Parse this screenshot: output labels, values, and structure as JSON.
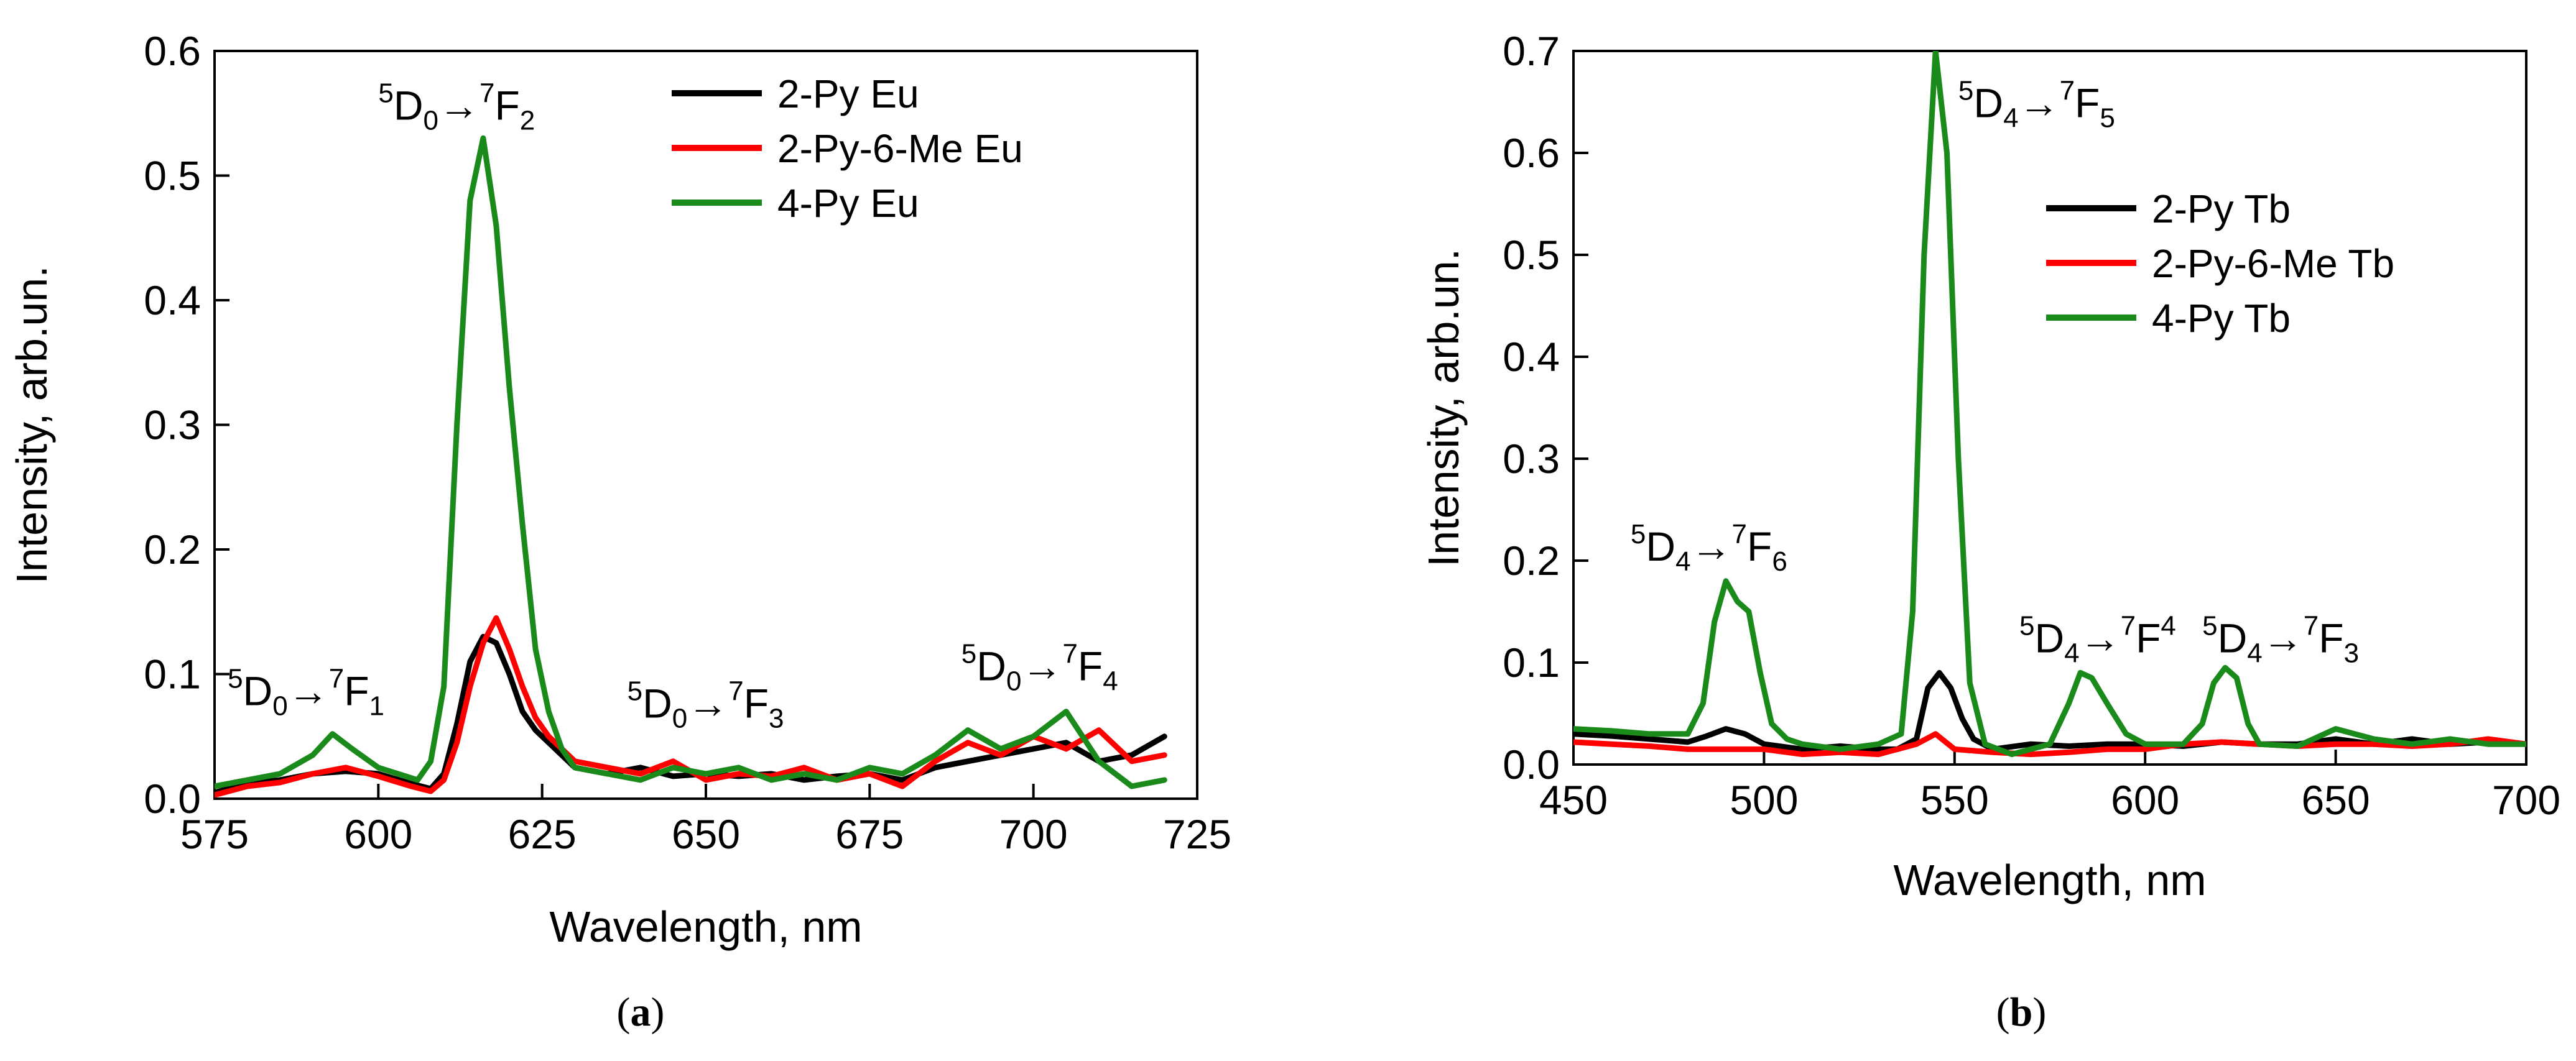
{
  "chart_data": [
    {
      "type": "line",
      "panel": "a",
      "caption": {
        "open": "(",
        "letter": "a",
        "close": ")"
      },
      "xlabel": "Wavelength, nm",
      "ylabel": "Intensity, arb.un.",
      "xlim": [
        575,
        725
      ],
      "ylim": [
        0,
        0.6
      ],
      "xticks": [
        575,
        600,
        625,
        650,
        675,
        700,
        725
      ],
      "xtick_labels": [
        "575",
        "600",
        "625",
        "650",
        "675",
        "700",
        "725"
      ],
      "yticks": [
        0,
        0.1,
        0.2,
        0.3,
        0.4,
        0.5,
        0.6
      ],
      "ytick_labels": [
        "0.0",
        "0.1",
        "0.2",
        "0.3",
        "0.4",
        "0.5",
        "0.6"
      ],
      "legend_position": "top-right",
      "annotations": [
        {
          "text": "5D0→7F2",
          "pre": "5",
          "main": "D",
          "sub": "0",
          "arrow": "→",
          "sup2": "7",
          "main2": "F",
          "end": "2",
          "end_style": "sub",
          "x": 600,
          "y": 0.545
        },
        {
          "text": "5D0→7F1",
          "pre": "5",
          "main": "D",
          "sub": "0",
          "arrow": "→",
          "sup2": "7",
          "main2": "F",
          "end": "1",
          "end_style": "sub",
          "x": 577,
          "y": 0.075
        },
        {
          "text": "5D0→7F3",
          "pre": "5",
          "main": "D",
          "sub": "0",
          "arrow": "→",
          "sup2": "7",
          "main2": "F",
          "end": "3",
          "end_style": "sub",
          "x": 638,
          "y": 0.065
        },
        {
          "text": "5D0→7F4",
          "pre": "5",
          "main": "D",
          "sub": "0",
          "arrow": "→",
          "sup2": "7",
          "main2": "F",
          "end": "4",
          "end_style": "sub",
          "x": 689,
          "y": 0.095
        }
      ],
      "series": [
        {
          "name": "2-Py Eu",
          "color": "#000000",
          "x": [
            575,
            580,
            585,
            590,
            595,
            600,
            605,
            608,
            610,
            612,
            614,
            616,
            618,
            620,
            622,
            624,
            626,
            628,
            630,
            635,
            640,
            645,
            650,
            655,
            660,
            665,
            670,
            675,
            680,
            685,
            690,
            695,
            700,
            705,
            710,
            715,
            720
          ],
          "y": [
            0.005,
            0.012,
            0.015,
            0.02,
            0.022,
            0.02,
            0.012,
            0.008,
            0.02,
            0.06,
            0.11,
            0.13,
            0.125,
            0.1,
            0.07,
            0.055,
            0.045,
            0.035,
            0.025,
            0.02,
            0.025,
            0.018,
            0.02,
            0.018,
            0.02,
            0.015,
            0.018,
            0.02,
            0.015,
            0.025,
            0.03,
            0.035,
            0.04,
            0.045,
            0.03,
            0.035,
            0.05
          ]
        },
        {
          "name": "2-Py-6-Me Eu",
          "color": "#ff0000",
          "x": [
            575,
            580,
            585,
            590,
            595,
            600,
            605,
            608,
            610,
            612,
            614,
            616,
            618,
            620,
            622,
            624,
            626,
            628,
            630,
            635,
            640,
            645,
            650,
            655,
            660,
            665,
            670,
            675,
            680,
            685,
            690,
            695,
            700,
            705,
            710,
            715,
            720
          ],
          "y": [
            0.003,
            0.01,
            0.013,
            0.02,
            0.025,
            0.018,
            0.01,
            0.006,
            0.015,
            0.045,
            0.09,
            0.125,
            0.145,
            0.12,
            0.09,
            0.065,
            0.05,
            0.04,
            0.03,
            0.025,
            0.02,
            0.03,
            0.015,
            0.02,
            0.018,
            0.025,
            0.015,
            0.02,
            0.01,
            0.03,
            0.045,
            0.035,
            0.05,
            0.04,
            0.055,
            0.03,
            0.035
          ]
        },
        {
          "name": "4-Py Eu",
          "color": "#1a8a1a",
          "x": [
            575,
            580,
            585,
            590,
            593,
            596,
            600,
            603,
            606,
            608,
            610,
            612,
            614,
            616,
            618,
            620,
            622,
            624,
            626,
            628,
            630,
            635,
            640,
            645,
            650,
            655,
            660,
            665,
            670,
            675,
            680,
            685,
            690,
            695,
            700,
            705,
            710,
            715,
            720
          ],
          "y": [
            0.01,
            0.015,
            0.02,
            0.035,
            0.052,
            0.04,
            0.025,
            0.02,
            0.015,
            0.03,
            0.09,
            0.3,
            0.48,
            0.53,
            0.46,
            0.33,
            0.22,
            0.12,
            0.07,
            0.04,
            0.025,
            0.02,
            0.015,
            0.025,
            0.02,
            0.025,
            0.015,
            0.02,
            0.015,
            0.025,
            0.02,
            0.035,
            0.055,
            0.04,
            0.05,
            0.07,
            0.03,
            0.01,
            0.015
          ]
        }
      ]
    },
    {
      "type": "line",
      "panel": "b",
      "caption": {
        "open": "(",
        "letter": "b",
        "close": ")"
      },
      "xlabel": "Wavelength, nm",
      "ylabel": "Intensity, arb.un.",
      "xlim": [
        450,
        700
      ],
      "ylim": [
        0,
        0.7
      ],
      "xticks": [
        450,
        500,
        550,
        600,
        650,
        700
      ],
      "xtick_labels": [
        "450",
        "500",
        "550",
        "600",
        "650",
        "700"
      ],
      "yticks": [
        0,
        0.1,
        0.2,
        0.3,
        0.4,
        0.5,
        0.6,
        0.7
      ],
      "ytick_labels": [
        "0.0",
        "0.1",
        "0.2",
        "0.3",
        "0.4",
        "0.5",
        "0.6",
        "0.7"
      ],
      "legend_position": "top-right",
      "annotations": [
        {
          "text": "5D4→7F5",
          "pre": "5",
          "main": "D",
          "sub": "4",
          "arrow": "→",
          "sup2": "7",
          "main2": "F",
          "end": "5",
          "end_style": "sub",
          "x": 551,
          "y": 0.635
        },
        {
          "text": "5D4→7F6",
          "pre": "5",
          "main": "D",
          "sub": "4",
          "arrow": "→",
          "sup2": "7",
          "main2": "F",
          "end": "6",
          "end_style": "sub",
          "x": 465,
          "y": 0.2
        },
        {
          "text": "5D4→7F4",
          "pre": "5",
          "main": "D",
          "sub": "4",
          "arrow": "→",
          "sup2": "7",
          "main2": "F",
          "end": "4",
          "end_style": "sup",
          "x": 567,
          "y": 0.11
        },
        {
          "text": "5D4→7F3",
          "pre": "5",
          "main": "D",
          "sub": "4",
          "arrow": "→",
          "sup2": "7",
          "main2": "F",
          "end": "3",
          "end_style": "sub",
          "x": 615,
          "y": 0.11
        }
      ],
      "series": [
        {
          "name": "2-Py Tb",
          "color": "#000000",
          "x": [
            450,
            460,
            470,
            480,
            485,
            490,
            495,
            500,
            510,
            520,
            530,
            535,
            540,
            543,
            546,
            549,
            552,
            555,
            560,
            570,
            580,
            590,
            600,
            610,
            620,
            630,
            640,
            650,
            660,
            670,
            680,
            690,
            700
          ],
          "y": [
            0.03,
            0.028,
            0.025,
            0.022,
            0.028,
            0.035,
            0.03,
            0.02,
            0.015,
            0.018,
            0.015,
            0.015,
            0.025,
            0.075,
            0.09,
            0.075,
            0.045,
            0.025,
            0.015,
            0.02,
            0.018,
            0.02,
            0.02,
            0.018,
            0.022,
            0.02,
            0.02,
            0.025,
            0.02,
            0.025,
            0.02,
            0.022,
            0.02
          ]
        },
        {
          "name": "2-Py-6-Me Tb",
          "color": "#ff0000",
          "x": [
            450,
            460,
            470,
            480,
            490,
            500,
            510,
            520,
            530,
            540,
            545,
            550,
            560,
            570,
            580,
            590,
            600,
            610,
            620,
            630,
            640,
            650,
            660,
            670,
            680,
            690,
            700
          ],
          "y": [
            0.022,
            0.02,
            0.018,
            0.015,
            0.015,
            0.015,
            0.01,
            0.012,
            0.01,
            0.02,
            0.03,
            0.015,
            0.012,
            0.01,
            0.012,
            0.015,
            0.015,
            0.02,
            0.022,
            0.02,
            0.018,
            0.02,
            0.02,
            0.018,
            0.02,
            0.025,
            0.02
          ]
        },
        {
          "name": "4-Py Tb",
          "color": "#1a8a1a",
          "x": [
            450,
            460,
            470,
            480,
            484,
            487,
            490,
            493,
            496,
            499,
            502,
            506,
            510,
            520,
            530,
            536,
            539,
            542,
            545,
            548,
            551,
            554,
            558,
            565,
            575,
            580,
            583,
            586,
            590,
            595,
            600,
            610,
            615,
            618,
            621,
            624,
            627,
            630,
            640,
            650,
            660,
            670,
            680,
            690,
            700
          ],
          "y": [
            0.035,
            0.033,
            0.03,
            0.03,
            0.06,
            0.14,
            0.18,
            0.16,
            0.15,
            0.09,
            0.04,
            0.025,
            0.02,
            0.015,
            0.02,
            0.03,
            0.15,
            0.5,
            0.7,
            0.6,
            0.3,
            0.08,
            0.02,
            0.01,
            0.02,
            0.06,
            0.09,
            0.085,
            0.06,
            0.03,
            0.02,
            0.02,
            0.04,
            0.08,
            0.095,
            0.085,
            0.04,
            0.02,
            0.018,
            0.035,
            0.025,
            0.02,
            0.025,
            0.02,
            0.02
          ]
        }
      ]
    }
  ]
}
